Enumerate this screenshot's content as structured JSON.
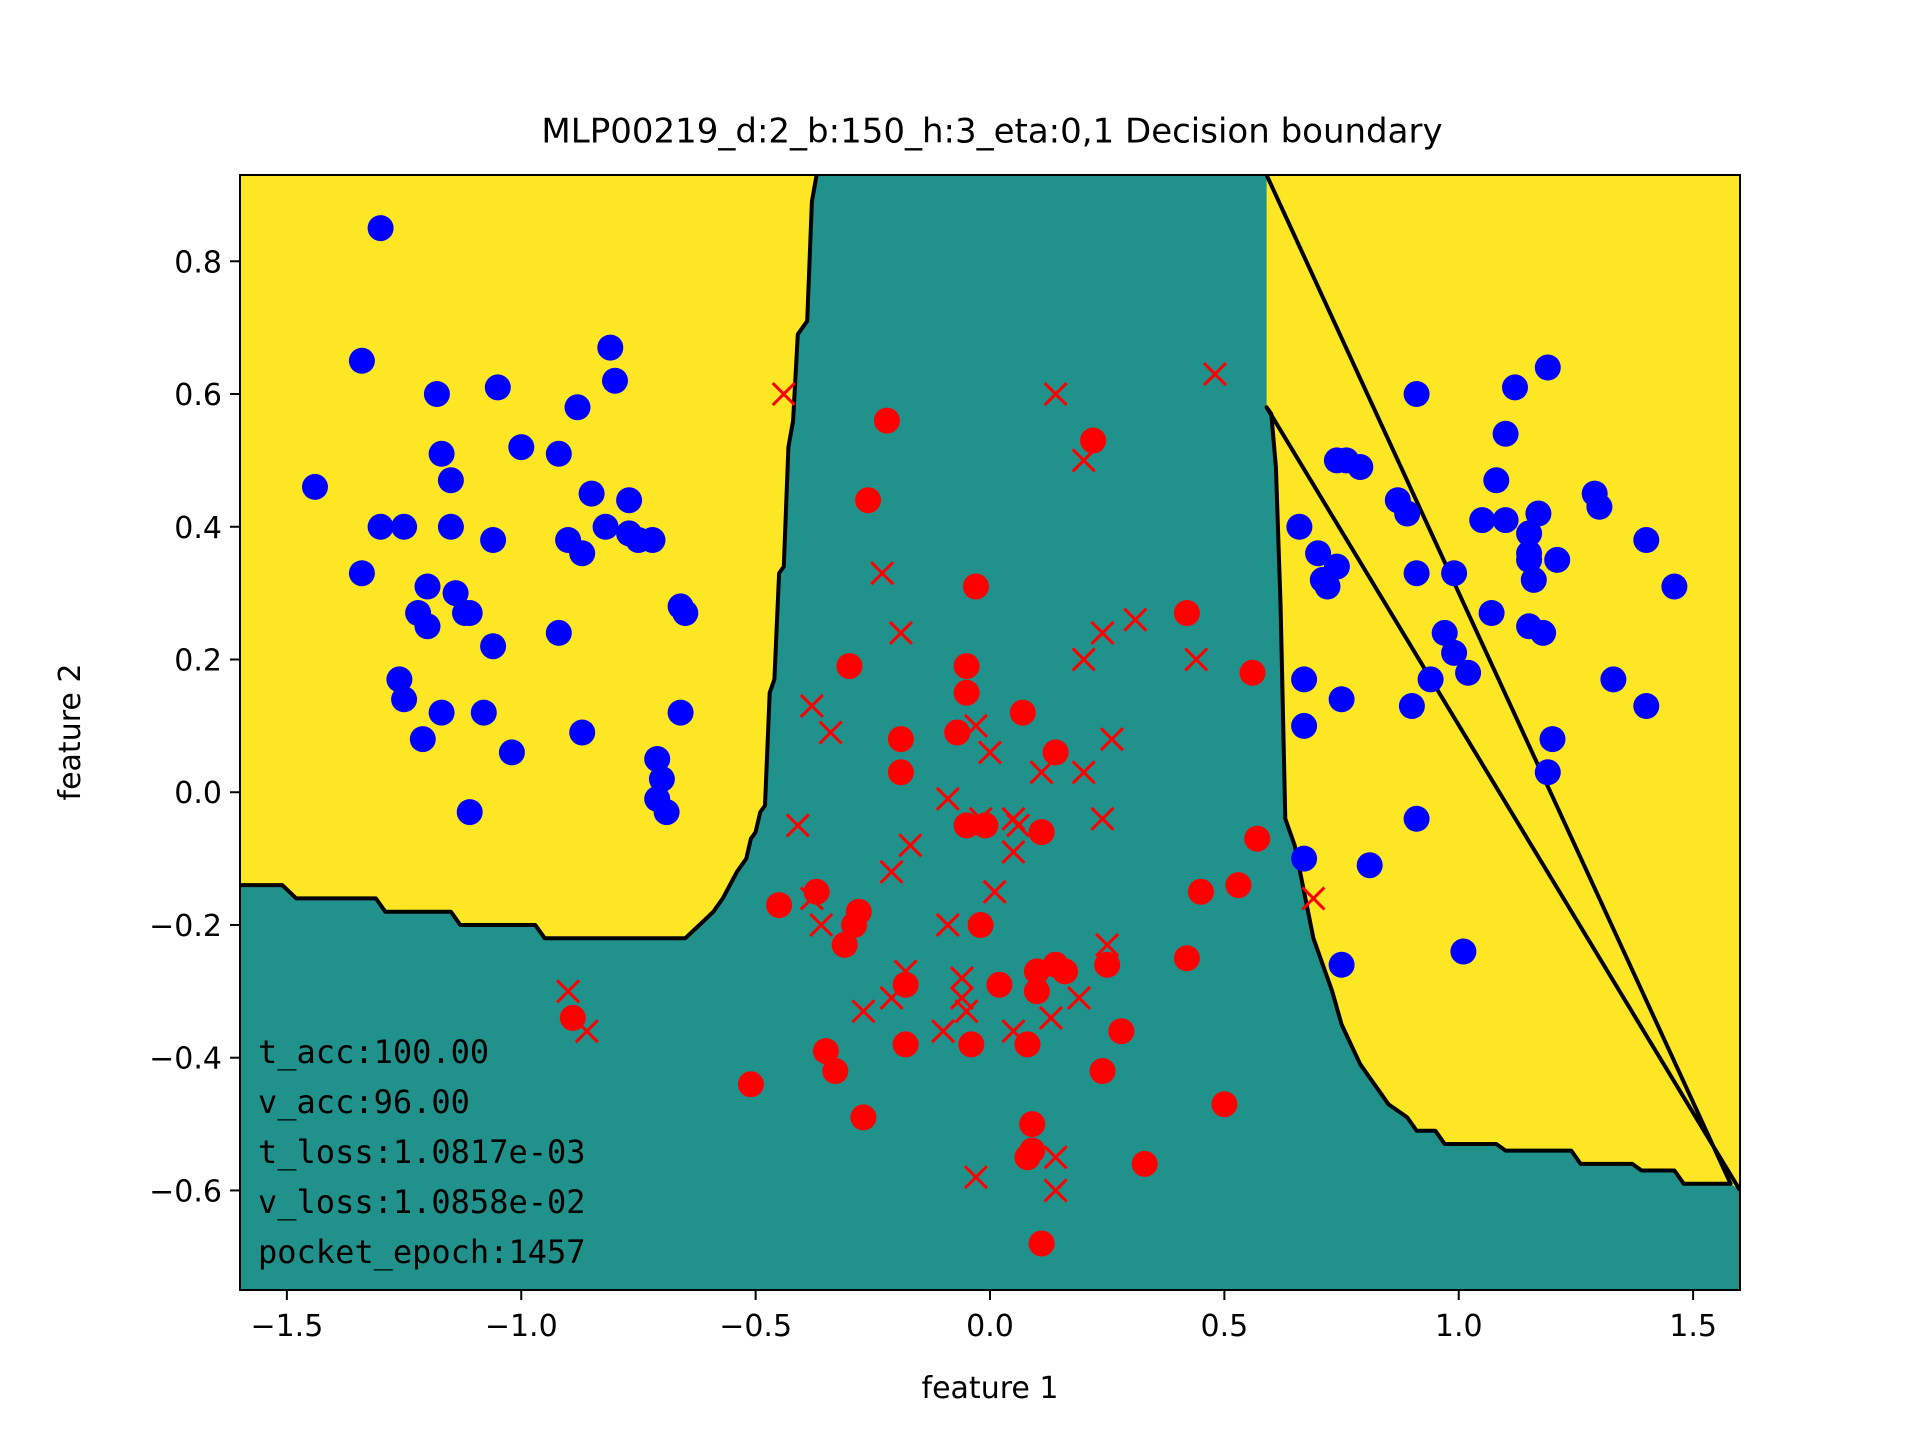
{
  "chart_data": {
    "type": "scatter",
    "title": "MLP00219_d:2_b:150_h:3_eta:0,1 Decision boundary",
    "xlabel": "feature 1",
    "ylabel": "feature 2",
    "xlim": [
      -1.6,
      1.6
    ],
    "ylim": [
      -0.75,
      0.93
    ],
    "xticks": [
      -1.5,
      -1.0,
      -0.5,
      0.0,
      0.5,
      1.0,
      1.5
    ],
    "xtick_labels": [
      "−1.5",
      "−1.0",
      "−0.5",
      "0.0",
      "0.5",
      "1.0",
      "1.5"
    ],
    "yticks": [
      -0.6,
      -0.4,
      -0.2,
      0.0,
      0.2,
      0.4,
      0.6,
      0.8
    ],
    "ytick_labels": [
      "−0.6",
      "−0.4",
      "−0.2",
      "0.0",
      "0.2",
      "0.4",
      "0.6",
      "0.8"
    ],
    "grid": false,
    "legend": "none",
    "colors": {
      "class_a_region": "#fde725",
      "class_b_region": "#21918c",
      "boundary": "#000000",
      "class_a_points": "#0000ff",
      "class_b_points": "#ff0000"
    },
    "regions": [
      {
        "name": "class_a_left",
        "polygon": [
          [
            -1.6,
            0.93
          ],
          [
            -0.37,
            0.93
          ],
          [
            -0.38,
            0.89
          ],
          [
            -0.39,
            0.71
          ],
          [
            -0.41,
            0.69
          ],
          [
            -0.42,
            0.56
          ],
          [
            -0.43,
            0.52
          ],
          [
            -0.44,
            0.34
          ],
          [
            -0.45,
            0.33
          ],
          [
            -0.46,
            0.17
          ],
          [
            -0.47,
            0.15
          ],
          [
            -0.48,
            -0.02
          ],
          [
            -0.49,
            -0.03
          ],
          [
            -0.5,
            -0.06
          ],
          [
            -0.51,
            -0.07
          ],
          [
            -0.52,
            -0.1
          ],
          [
            -0.54,
            -0.12
          ],
          [
            -0.57,
            -0.16
          ],
          [
            -0.59,
            -0.18
          ],
          [
            -0.62,
            -0.2
          ],
          [
            -0.65,
            -0.22
          ],
          [
            -0.95,
            -0.22
          ],
          [
            -0.97,
            -0.2
          ],
          [
            -1.13,
            -0.2
          ],
          [
            -1.15,
            -0.18
          ],
          [
            -1.29,
            -0.18
          ],
          [
            -1.31,
            -0.16
          ],
          [
            -1.48,
            -0.16
          ],
          [
            -1.51,
            -0.14
          ],
          [
            -1.6,
            -0.14
          ]
        ]
      },
      {
        "name": "class_a_right",
        "polygon": [
          [
            0.59,
            0.93
          ],
          [
            1.6,
            0.93
          ],
          [
            1.6,
            -0.6
          ],
          [
            1.58,
            -0.59
          ],
          [
            1.48,
            -0.59
          ],
          [
            1.46,
            -0.57
          ],
          [
            1.39,
            -0.57
          ],
          [
            1.37,
            -0.56
          ],
          [
            1.26,
            -0.56
          ],
          [
            1.24,
            -0.54
          ],
          [
            1.1,
            -0.54
          ],
          [
            1.08,
            -0.53
          ],
          [
            0.97,
            -0.53
          ],
          [
            0.95,
            -0.51
          ],
          [
            0.91,
            -0.51
          ],
          [
            0.89,
            -0.49
          ],
          [
            0.87,
            -0.48
          ],
          [
            0.85,
            -0.47
          ],
          [
            0.83,
            -0.45
          ],
          [
            0.81,
            -0.43
          ],
          [
            0.79,
            -0.41
          ],
          [
            0.77,
            -0.38
          ],
          [
            0.75,
            -0.35
          ],
          [
            0.73,
            -0.3
          ],
          [
            0.71,
            -0.26
          ],
          [
            0.69,
            -0.22
          ],
          [
            0.67,
            -0.15
          ],
          [
            0.65,
            -0.08
          ],
          [
            0.63,
            -0.04
          ],
          [
            0.62,
            0.28
          ],
          [
            0.61,
            0.49
          ],
          [
            0.6,
            0.57
          ],
          [
            0.59,
            0.58
          ]
        ]
      }
    ],
    "series": [
      {
        "marker": "circle",
        "color": "#0000ff",
        "points": [
          [
            -1.3,
            0.85
          ],
          [
            -1.34,
            0.65
          ],
          [
            -1.44,
            0.46
          ],
          [
            -1.3,
            0.4
          ],
          [
            -1.25,
            0.4
          ],
          [
            -1.34,
            0.33
          ],
          [
            -1.18,
            0.6
          ],
          [
            -1.05,
            0.61
          ],
          [
            -1.17,
            0.51
          ],
          [
            -1.15,
            0.47
          ],
          [
            -1.15,
            0.4
          ],
          [
            -1.06,
            0.38
          ],
          [
            -1.2,
            0.31
          ],
          [
            -1.14,
            0.3
          ],
          [
            -1.12,
            0.27
          ],
          [
            -1.11,
            0.27
          ],
          [
            -1.22,
            0.27
          ],
          [
            -1.2,
            0.25
          ],
          [
            -1.06,
            0.22
          ],
          [
            -1.26,
            0.17
          ],
          [
            -1.25,
            0.14
          ],
          [
            -1.17,
            0.12
          ],
          [
            -1.08,
            0.12
          ],
          [
            -1.21,
            0.08
          ],
          [
            -1.02,
            0.06
          ],
          [
            -1.11,
            -0.03
          ],
          [
            -1.0,
            0.52
          ],
          [
            -0.92,
            0.51
          ],
          [
            -0.88,
            0.58
          ],
          [
            -0.81,
            0.67
          ],
          [
            -0.8,
            0.62
          ],
          [
            -0.85,
            0.45
          ],
          [
            -0.77,
            0.44
          ],
          [
            -0.9,
            0.38
          ],
          [
            -0.87,
            0.36
          ],
          [
            -0.82,
            0.4
          ],
          [
            -0.77,
            0.39
          ],
          [
            -0.75,
            0.38
          ],
          [
            -0.72,
            0.38
          ],
          [
            -0.92,
            0.24
          ],
          [
            -0.66,
            0.28
          ],
          [
            -0.65,
            0.27
          ],
          [
            -0.66,
            0.12
          ],
          [
            -0.71,
            0.05
          ],
          [
            -0.7,
            0.02
          ],
          [
            -0.71,
            -0.01
          ],
          [
            -0.69,
            -0.03
          ],
          [
            -0.87,
            0.09
          ],
          [
            0.66,
            0.4
          ],
          [
            0.7,
            0.36
          ],
          [
            0.71,
            0.32
          ],
          [
            0.72,
            0.31
          ],
          [
            0.74,
            0.34
          ],
          [
            0.74,
            0.5
          ],
          [
            0.76,
            0.5
          ],
          [
            0.79,
            0.49
          ],
          [
            0.87,
            0.44
          ],
          [
            0.89,
            0.42
          ],
          [
            0.91,
            0.6
          ],
          [
            0.91,
            0.33
          ],
          [
            0.99,
            0.33
          ],
          [
            0.97,
            0.24
          ],
          [
            0.99,
            0.21
          ],
          [
            0.94,
            0.17
          ],
          [
            1.02,
            0.18
          ],
          [
            0.9,
            0.13
          ],
          [
            0.67,
            0.17
          ],
          [
            0.67,
            0.1
          ],
          [
            0.75,
            0.14
          ],
          [
            1.05,
            0.41
          ],
          [
            1.07,
            0.27
          ],
          [
            1.08,
            0.47
          ],
          [
            1.1,
            0.54
          ],
          [
            1.1,
            0.41
          ],
          [
            1.12,
            0.61
          ],
          [
            1.15,
            0.39
          ],
          [
            1.15,
            0.36
          ],
          [
            1.15,
            0.35
          ],
          [
            1.16,
            0.32
          ],
          [
            1.15,
            0.25
          ],
          [
            1.17,
            0.42
          ],
          [
            1.18,
            0.24
          ],
          [
            1.19,
            0.64
          ],
          [
            1.2,
            0.08
          ],
          [
            1.19,
            0.03
          ],
          [
            1.21,
            0.35
          ],
          [
            1.29,
            0.45
          ],
          [
            1.3,
            0.43
          ],
          [
            1.33,
            0.17
          ],
          [
            1.4,
            0.38
          ],
          [
            1.4,
            0.13
          ],
          [
            1.46,
            0.31
          ],
          [
            0.91,
            -0.04
          ],
          [
            0.67,
            -0.1
          ],
          [
            0.81,
            -0.11
          ],
          [
            0.75,
            -0.26
          ],
          [
            1.01,
            -0.24
          ]
        ]
      },
      {
        "marker": "circle",
        "color": "#ff0000",
        "points": [
          [
            -0.22,
            0.56
          ],
          [
            -0.26,
            0.44
          ],
          [
            -0.03,
            0.31
          ],
          [
            0.22,
            0.53
          ],
          [
            -0.3,
            0.19
          ],
          [
            -0.05,
            0.19
          ],
          [
            -0.05,
            0.15
          ],
          [
            0.07,
            0.12
          ],
          [
            -0.07,
            0.09
          ],
          [
            -0.19,
            0.08
          ],
          [
            -0.19,
            0.03
          ],
          [
            0.14,
            0.06
          ],
          [
            -0.05,
            -0.05
          ],
          [
            -0.01,
            -0.05
          ],
          [
            0.11,
            -0.06
          ],
          [
            -0.45,
            -0.17
          ],
          [
            -0.37,
            -0.15
          ],
          [
            -0.28,
            -0.18
          ],
          [
            -0.29,
            -0.2
          ],
          [
            -0.02,
            -0.2
          ],
          [
            -0.31,
            -0.23
          ],
          [
            -0.18,
            -0.29
          ],
          [
            0.02,
            -0.29
          ],
          [
            0.1,
            -0.27
          ],
          [
            0.14,
            -0.26
          ],
          [
            0.16,
            -0.27
          ],
          [
            0.25,
            -0.26
          ],
          [
            0.1,
            -0.3
          ],
          [
            0.28,
            -0.36
          ],
          [
            -0.18,
            -0.38
          ],
          [
            -0.04,
            -0.38
          ],
          [
            0.08,
            -0.38
          ],
          [
            -0.35,
            -0.39
          ],
          [
            -0.33,
            -0.42
          ],
          [
            -0.27,
            -0.49
          ],
          [
            0.09,
            -0.5
          ],
          [
            0.09,
            -0.54
          ],
          [
            0.08,
            -0.55
          ],
          [
            -0.51,
            -0.44
          ],
          [
            0.11,
            -0.68
          ],
          [
            0.33,
            -0.56
          ],
          [
            0.24,
            -0.42
          ],
          [
            0.42,
            -0.25
          ],
          [
            0.45,
            -0.15
          ],
          [
            0.53,
            -0.14
          ],
          [
            0.57,
            -0.07
          ],
          [
            0.56,
            0.18
          ],
          [
            0.42,
            0.27
          ],
          [
            0.5,
            -0.47
          ],
          [
            -0.89,
            -0.34
          ]
        ]
      },
      {
        "marker": "x",
        "color": "#ff0000",
        "points": [
          [
            -0.44,
            0.6
          ],
          [
            0.14,
            0.6
          ],
          [
            0.48,
            0.63
          ],
          [
            0.2,
            0.5
          ],
          [
            -0.23,
            0.33
          ],
          [
            -0.19,
            0.24
          ],
          [
            0.24,
            0.24
          ],
          [
            0.31,
            0.26
          ],
          [
            0.2,
            0.2
          ],
          [
            0.44,
            0.2
          ],
          [
            -0.38,
            0.13
          ],
          [
            -0.34,
            0.09
          ],
          [
            -0.03,
            0.1
          ],
          [
            0.26,
            0.08
          ],
          [
            0.0,
            0.06
          ],
          [
            0.11,
            0.03
          ],
          [
            0.2,
            0.03
          ],
          [
            -0.09,
            -0.01
          ],
          [
            -0.41,
            -0.05
          ],
          [
            -0.02,
            -0.04
          ],
          [
            0.05,
            -0.04
          ],
          [
            0.06,
            -0.05
          ],
          [
            0.05,
            -0.09
          ],
          [
            0.24,
            -0.04
          ],
          [
            -0.17,
            -0.08
          ],
          [
            -0.21,
            -0.12
          ],
          [
            0.01,
            -0.15
          ],
          [
            -0.38,
            -0.16
          ],
          [
            -0.36,
            -0.2
          ],
          [
            -0.09,
            -0.2
          ],
          [
            0.25,
            -0.23
          ],
          [
            -0.18,
            -0.27
          ],
          [
            -0.06,
            -0.28
          ],
          [
            -0.06,
            -0.31
          ],
          [
            -0.05,
            -0.33
          ],
          [
            -0.21,
            -0.31
          ],
          [
            0.19,
            -0.31
          ],
          [
            -0.27,
            -0.33
          ],
          [
            -0.1,
            -0.36
          ],
          [
            0.13,
            -0.34
          ],
          [
            0.05,
            -0.36
          ],
          [
            0.14,
            -0.55
          ],
          [
            0.14,
            -0.6
          ],
          [
            -0.03,
            -0.58
          ],
          [
            0.69,
            -0.16
          ],
          [
            -0.9,
            -0.3
          ],
          [
            -0.86,
            -0.36
          ]
        ]
      }
    ],
    "annotations": [
      "t_acc:100.00",
      "v_acc:96.00",
      "t_loss:1.0817e-03",
      "v_loss:1.0858e-02",
      "pocket_epoch:1457"
    ]
  }
}
